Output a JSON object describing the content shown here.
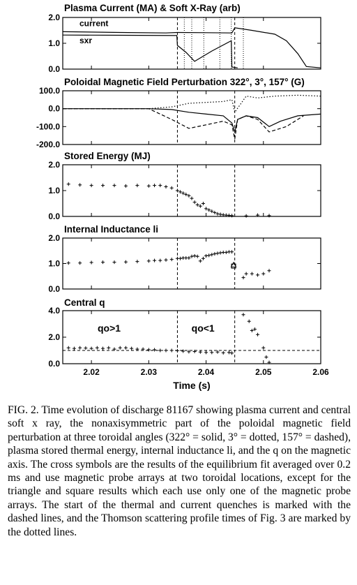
{
  "figure": {
    "xlabel": "Time (s)",
    "xticks": [
      "2.02",
      "2.03",
      "2.04",
      "2.05",
      "2.06"
    ],
    "quench_times": [
      2.035,
      2.045
    ],
    "thomson_times": [
      2.0362,
      2.0375,
      2.0396,
      2.0424,
      2.0444,
      2.0465
    ]
  },
  "chart_data": [
    {
      "type": "line",
      "title": "Plasma Current (MA) & Soft X-Ray (arb)",
      "xlim": [
        2.015,
        2.06
      ],
      "ylim": [
        0.0,
        2.0
      ],
      "yticks": [
        "2.0",
        "1.0",
        "0.0"
      ],
      "series": [
        {
          "name": "current",
          "x": [
            2.015,
            2.025,
            2.033,
            2.035,
            2.04,
            2.0445,
            2.045,
            2.048,
            2.052,
            2.054,
            2.056,
            2.0575,
            2.06
          ],
          "y": [
            1.45,
            1.42,
            1.4,
            1.42,
            1.41,
            1.4,
            1.6,
            1.5,
            1.35,
            1.1,
            0.6,
            0.1,
            0.05
          ]
        },
        {
          "name": "sxr",
          "x": [
            2.015,
            2.025,
            2.0349,
            2.035,
            2.0365,
            2.038,
            2.041,
            2.0444,
            2.0445,
            2.0455
          ],
          "y": [
            1.32,
            1.31,
            1.3,
            0.92,
            0.65,
            0.3,
            0.7,
            1.1,
            0.08,
            0.05
          ]
        }
      ]
    },
    {
      "type": "line",
      "title": "Poloidal Magnetic Field Perturbation 322°, 3°, 157° (G)",
      "xlim": [
        2.015,
        2.06
      ],
      "ylim": [
        -200.0,
        100.0
      ],
      "yticks": [
        "100.0",
        "0.0",
        "-100.0",
        "-200.0"
      ],
      "series": [
        {
          "line": "solid",
          "x": [
            2.015,
            2.03,
            2.034,
            2.037,
            2.04,
            2.043,
            2.0445,
            2.045,
            2.0455,
            2.047,
            2.049,
            2.051,
            2.053,
            2.056,
            2.06
          ],
          "y": [
            0,
            0,
            -5,
            -20,
            -30,
            -40,
            -80,
            -130,
            -60,
            -40,
            -50,
            -100,
            -70,
            -40,
            -30
          ]
        },
        {
          "line": "dotted",
          "x": [
            2.015,
            2.03,
            2.034,
            2.037,
            2.04,
            2.043,
            2.0445,
            2.045,
            2.047,
            2.049,
            2.052,
            2.056,
            2.06
          ],
          "y": [
            0,
            0,
            10,
            30,
            35,
            40,
            50,
            -20,
            70,
            60,
            70,
            75,
            70
          ]
        },
        {
          "line": "dashed",
          "x": [
            2.015,
            2.03,
            2.034,
            2.037,
            2.04,
            2.043,
            2.0445,
            2.045,
            2.0455,
            2.047,
            2.049,
            2.051,
            2.054,
            2.057
          ],
          "y": [
            0,
            0,
            -60,
            -110,
            -90,
            -70,
            -90,
            -170,
            -60,
            -40,
            -60,
            -130,
            -100,
            -40
          ]
        }
      ]
    },
    {
      "type": "scatter",
      "title": "Stored Energy (MJ)",
      "xlim": [
        2.015,
        2.06
      ],
      "ylim": [
        0.0,
        2.0
      ],
      "yticks": [
        "2.0",
        "1.0",
        "0.0"
      ],
      "x": [
        2.016,
        2.018,
        2.02,
        2.022,
        2.024,
        2.026,
        2.028,
        2.03,
        2.031,
        2.032,
        2.033,
        2.034,
        2.035,
        2.0355,
        2.036,
        2.0365,
        2.037,
        2.0375,
        2.038,
        2.0385,
        2.039,
        2.0395,
        2.04,
        2.0405,
        2.041,
        2.0415,
        2.042,
        2.0425,
        2.043,
        2.0435,
        2.044,
        2.0445,
        2.047,
        2.049,
        2.051
      ],
      "y": [
        1.25,
        1.22,
        1.2,
        1.2,
        1.2,
        1.18,
        1.2,
        1.18,
        1.2,
        1.2,
        1.15,
        1.1,
        1.0,
        0.95,
        0.9,
        0.85,
        0.8,
        0.7,
        0.55,
        0.45,
        0.4,
        0.5,
        0.3,
        0.25,
        0.2,
        0.15,
        0.1,
        0.08,
        0.06,
        0.05,
        0.04,
        0.03,
        0.02,
        0.05,
        0.03
      ]
    },
    {
      "type": "scatter",
      "title": "Internal Inductance li",
      "xlim": [
        2.015,
        2.06
      ],
      "ylim": [
        0.0,
        2.0
      ],
      "yticks": [
        "2.0",
        "1.0",
        "0.0"
      ],
      "x": [
        2.016,
        2.018,
        2.02,
        2.022,
        2.024,
        2.026,
        2.028,
        2.03,
        2.031,
        2.032,
        2.033,
        2.034,
        2.035,
        2.0355,
        2.036,
        2.0365,
        2.037,
        2.0375,
        2.038,
        2.0385,
        2.039,
        2.0395,
        2.04,
        2.0405,
        2.041,
        2.0415,
        2.042,
        2.0425,
        2.043,
        2.0435,
        2.044,
        2.0445,
        2.0465,
        2.047,
        2.048,
        2.049,
        2.05,
        2.051
      ],
      "y": [
        1.02,
        1.02,
        1.04,
        1.05,
        1.05,
        1.06,
        1.08,
        1.1,
        1.12,
        1.12,
        1.14,
        1.16,
        1.2,
        1.2,
        1.22,
        1.22,
        1.22,
        1.28,
        1.3,
        1.28,
        1.1,
        1.2,
        1.3,
        1.32,
        1.35,
        1.38,
        1.4,
        1.42,
        1.44,
        1.44,
        1.46,
        1.46,
        0.45,
        0.6,
        0.6,
        0.55,
        0.6,
        0.72
      ],
      "triangle": {
        "x": 2.0448,
        "y": 0.95
      },
      "square": {
        "x": 2.0448,
        "y": 0.9
      }
    },
    {
      "type": "scatter",
      "title": "Central q",
      "xlim": [
        2.015,
        2.06
      ],
      "ylim": [
        0.0,
        4.0
      ],
      "yticks": [
        "4.0",
        "2.0",
        "0.0"
      ],
      "reference_line_y": 1.0,
      "annotations": [
        "qo>1",
        "qo<1"
      ],
      "x": [
        2.016,
        2.017,
        2.018,
        2.019,
        2.02,
        2.021,
        2.022,
        2.023,
        2.024,
        2.025,
        2.026,
        2.027,
        2.028,
        2.029,
        2.03,
        2.031,
        2.032,
        2.033,
        2.034,
        2.035,
        2.036,
        2.037,
        2.038,
        2.039,
        2.04,
        2.041,
        2.042,
        2.043,
        2.044,
        2.0445,
        2.0465,
        2.0475,
        2.048,
        2.0485,
        2.049,
        2.05,
        2.0505,
        2.051
      ],
      "y": [
        1.2,
        1.15,
        1.2,
        1.18,
        1.15,
        1.2,
        1.15,
        1.2,
        1.1,
        1.2,
        1.2,
        1.15,
        1.1,
        1.1,
        1.05,
        1.05,
        1.0,
        1.0,
        1.0,
        0.98,
        0.95,
        0.9,
        0.92,
        0.88,
        0.85,
        0.85,
        0.88,
        0.82,
        0.85,
        0.8,
        3.7,
        3.2,
        2.5,
        2.6,
        2.2,
        1.2,
        0.5,
        0.1
      ]
    }
  ],
  "caption": "FIG. 2. Time evolution of discharge 81167 showing plasma current and central soft x ray, the nonaxisymmetric part of the poloidal magnetic field perturbation at three toroidal angles (322° = solid, 3° = dotted, 157° = dashed), plasma stored thermal energy, internal inductance li, and the q on the magnetic axis. The cross symbols are the results of the equilibrium fit averaged over 0.2 ms and use magnetic probe arrays at two toroidal locations, except for the triangle and square results which each use only one of the magnetic probe arrays. The start of the thermal and current quenches is marked with the dashed lines, and the Thomson scattering profile times of Fig. 3 are marked by the dotted lines."
}
